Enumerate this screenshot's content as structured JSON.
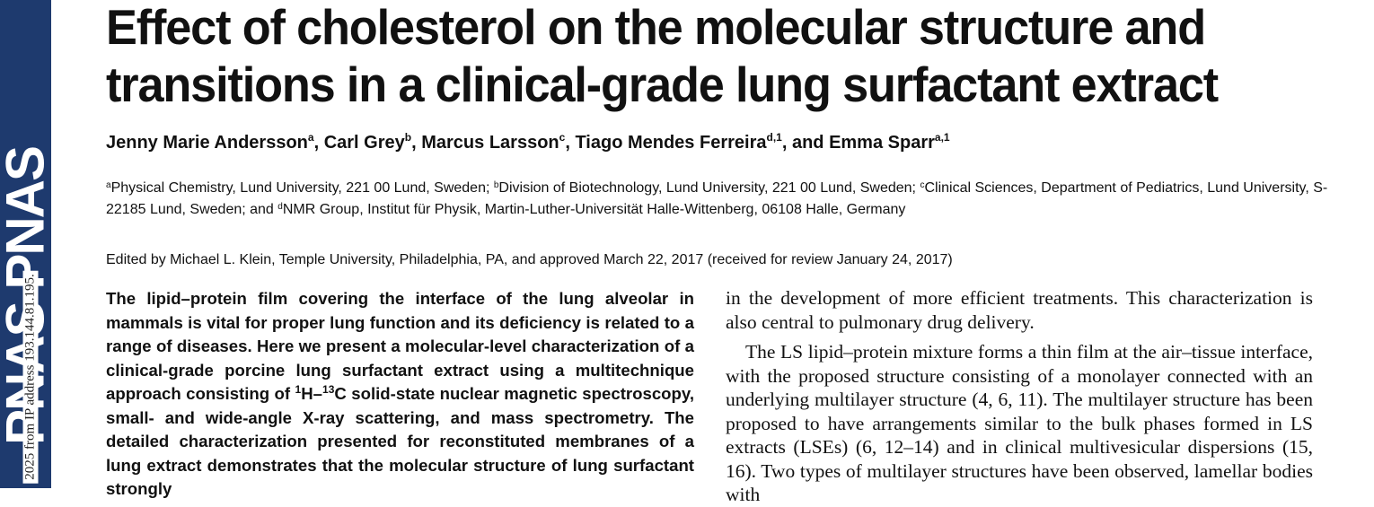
{
  "sidebar": {
    "logo": "PNAS PNAS",
    "stamp": "2025 from IP address 193.144.81.195."
  },
  "title": "Effect of cholesterol on the molecular structure and transitions in a clinical-grade lung surfactant extract",
  "authors": [
    {
      "name": "Jenny Marie Andersson",
      "aff": "a",
      "sep": ", "
    },
    {
      "name": "Carl Grey",
      "aff": "b",
      "sep": ", "
    },
    {
      "name": "Marcus Larsson",
      "aff": "c",
      "sep": ", "
    },
    {
      "name": "Tiago Mendes Ferreira",
      "aff": "d,1",
      "sep": ", and "
    },
    {
      "name": "Emma Sparr",
      "aff": "a,1",
      "sep": ""
    }
  ],
  "affiliations": [
    {
      "mark": "a",
      "text": "Physical Chemistry, Lund University, 221 00 Lund, Sweden; "
    },
    {
      "mark": "b",
      "text": "Division of Biotechnology, Lund University, 221 00 Lund, Sweden; "
    },
    {
      "mark": "c",
      "text": "Clinical Sciences, Department of Pediatrics, Lund University, S-22185 Lund, Sweden; and "
    },
    {
      "mark": "d",
      "text": "NMR Group, Institut für Physik, Martin-Luther-Universität Halle-Wittenberg, 06108 Halle, Germany"
    }
  ],
  "edited": "Edited by Michael L. Klein, Temple University, Philadelphia, PA, and approved March 22, 2017 (received for review January 24, 2017)",
  "abstract": {
    "part1": "The lipid–protein film covering the interface of the lung alveolar in mammals is vital for proper lung function and its deficiency is related to a range of diseases. Here we present a molecular-level characterization of a clinical-grade porcine lung surfactant extract using a multitechnique approach consisting of ",
    "sup1": "1",
    "mid1": "H–",
    "sup2": "13",
    "part2": "C solid-state nuclear magnetic spectroscopy, small- and wide-angle X-ray scattering, and mass spectrometry. The detailed characterization presented for reconstituted membranes of a lung extract demonstrates that the molecular structure of lung surfactant strongly"
  },
  "body": {
    "p1": "in the development of more efficient treatments. This characterization is also central to pulmonary drug delivery.",
    "p2": "The LS lipid–protein mixture forms a thin film at the air–tissue interface, with the proposed structure consisting of a monolayer connected with an underlying multilayer structure (4, 6, 11). The multilayer structure has been proposed to have arrangements similar to the bulk phases formed in LS extracts (LSEs) (6, 12–14) and in clinical multivesicular dispersions (15, 16). Two types of multilayer structures have been observed, lamellar bodies with"
  }
}
